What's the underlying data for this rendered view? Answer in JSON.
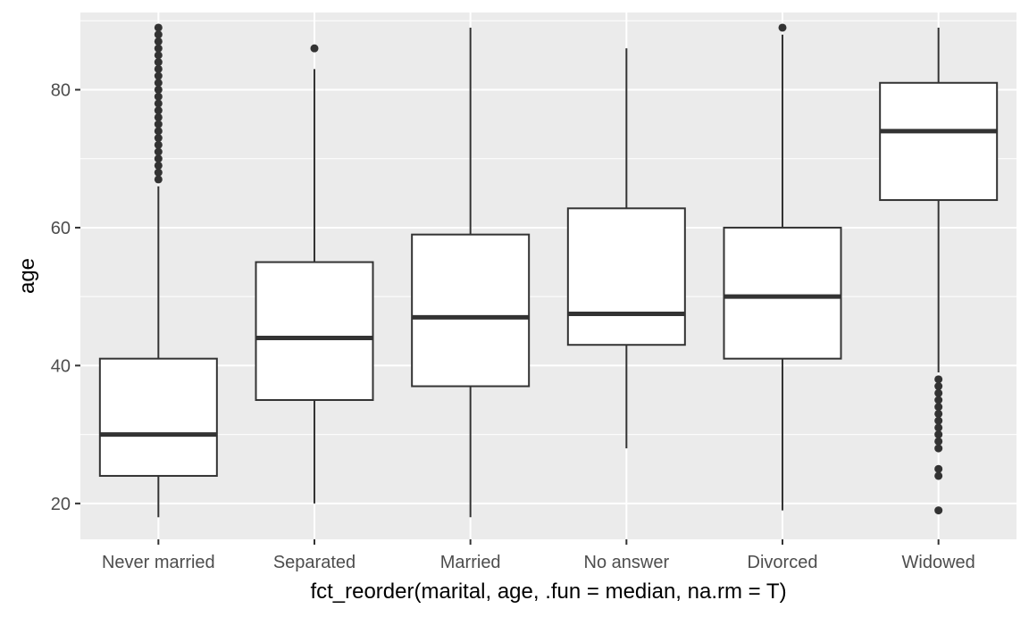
{
  "chart_data": {
    "type": "boxplot",
    "title": "",
    "xlabel": "fct_reorder(marital, age, .fun = median, na.rm = T)",
    "ylabel": "age",
    "ylim": [
      14.8,
      91.2
    ],
    "y_ticks": [
      20,
      40,
      60,
      80
    ],
    "y_tick_labels": [
      "20",
      "40",
      "60",
      "80"
    ],
    "grid": true,
    "categories": [
      "Never married",
      "Separated",
      "Married",
      "No answer",
      "Divorced",
      "Widowed"
    ],
    "series": [
      {
        "name": "Never married",
        "min": 18,
        "q1": 24,
        "median": 30,
        "q3": 41,
        "max": 66,
        "outliers": [
          67,
          68,
          69,
          70,
          71,
          72,
          73,
          74,
          75,
          76,
          77,
          78,
          79,
          80,
          81,
          82,
          83,
          84,
          85,
          86,
          87,
          88,
          89
        ]
      },
      {
        "name": "Separated",
        "min": 20,
        "q1": 35,
        "median": 44,
        "q3": 55,
        "max": 83,
        "outliers": [
          86
        ]
      },
      {
        "name": "Married",
        "min": 18,
        "q1": 37,
        "median": 47,
        "q3": 59,
        "max": 89,
        "outliers": []
      },
      {
        "name": "No answer",
        "min": 28,
        "q1": 43,
        "median": 47.5,
        "q3": 62.8,
        "max": 86,
        "outliers": []
      },
      {
        "name": "Divorced",
        "min": 19,
        "q1": 41,
        "median": 50,
        "q3": 60,
        "max": 88,
        "outliers": [
          89
        ]
      },
      {
        "name": "Widowed",
        "min": 39,
        "q1": 64,
        "median": 74,
        "q3": 81,
        "max": 89,
        "outliers": [
          19,
          24,
          25,
          28,
          29,
          30,
          31,
          32,
          33,
          34,
          35,
          36,
          37,
          38
        ]
      }
    ],
    "colors": {
      "panel_background": "#ebebeb",
      "grid_major": "#ffffff",
      "box_fill": "#ffffff",
      "box_stroke": "#333333",
      "tick_label": "#4d4d4d",
      "axis_title": "#000000"
    }
  }
}
